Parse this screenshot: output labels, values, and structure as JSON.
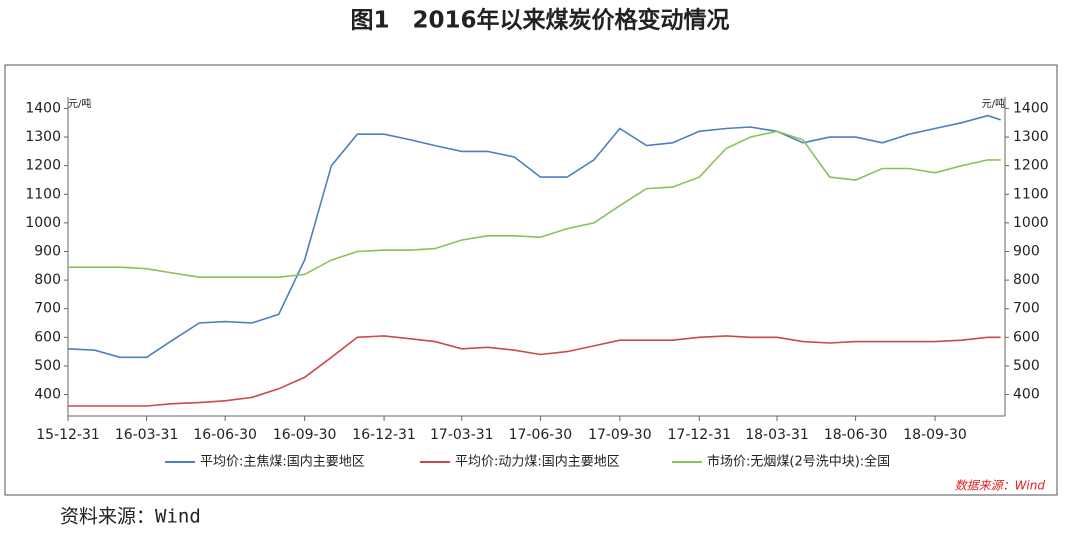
{
  "page_title": "图1　2016年以来煤炭价格变动情况",
  "chart_data": {
    "type": "line",
    "y_unit": "元/吨",
    "y2_unit": "元/吨",
    "note": "数据来源：Wind",
    "x": [
      "15-12-31",
      "16-01-31",
      "16-02-29",
      "16-03-31",
      "16-04-30",
      "16-05-31",
      "16-06-30",
      "16-07-31",
      "16-08-31",
      "16-09-30",
      "16-10-31",
      "16-11-30",
      "16-12-31",
      "17-01-31",
      "17-02-28",
      "17-03-31",
      "17-04-30",
      "17-05-31",
      "17-06-30",
      "17-07-31",
      "17-08-31",
      "17-09-30",
      "17-10-31",
      "17-11-30",
      "17-12-31",
      "18-01-31",
      "18-02-28",
      "18-03-31",
      "18-04-30",
      "18-05-31",
      "18-06-30",
      "18-07-31",
      "18-08-31",
      "18-09-30",
      "18-10-31",
      "18-11-30",
      "18-12-15"
    ],
    "xlim": [
      "15-12-31",
      "18-12-20"
    ],
    "xticks": [
      "15-12-31",
      "16-03-31",
      "16-06-30",
      "16-09-30",
      "16-12-31",
      "17-03-31",
      "17-06-30",
      "17-09-30",
      "17-12-31",
      "18-03-31",
      "18-06-30",
      "18-09-30"
    ],
    "ylim": [
      325,
      1440
    ],
    "yticks": [
      400,
      500,
      600,
      700,
      800,
      900,
      1000,
      1100,
      1200,
      1300,
      1400
    ],
    "y2lim": [
      325,
      1440
    ],
    "y2ticks": [
      400,
      500,
      600,
      700,
      800,
      900,
      1000,
      1100,
      1200,
      1300,
      1400
    ],
    "grid": false,
    "legend": "bottom",
    "series": [
      {
        "name": "平均价:主焦煤:国内主要地区",
        "color": "#4a7fc1",
        "values": [
          560,
          555,
          530,
          530,
          590,
          650,
          655,
          650,
          680,
          870,
          1200,
          1310,
          1310,
          1290,
          1270,
          1250,
          1250,
          1230,
          1160,
          1160,
          1220,
          1330,
          1270,
          1280,
          1320,
          1330,
          1335,
          1320,
          1280,
          1300,
          1300,
          1280,
          1310,
          1330,
          1350,
          1375,
          1360
        ]
      },
      {
        "name": "平均价:动力煤:国内主要地区",
        "color": "#c94a4a",
        "values": [
          360,
          360,
          360,
          360,
          368,
          372,
          378,
          390,
          420,
          460,
          530,
          600,
          605,
          595,
          585,
          560,
          565,
          555,
          540,
          550,
          570,
          590,
          590,
          590,
          600,
          605,
          600,
          600,
          585,
          580,
          585,
          585,
          585,
          585,
          590,
          600,
          600
        ]
      },
      {
        "name": "市场价:无烟煤(2号洗中块):全国",
        "color": "#8cc157",
        "values": [
          845,
          845,
          845,
          840,
          825,
          810,
          810,
          810,
          810,
          820,
          870,
          900,
          905,
          905,
          910,
          940,
          955,
          955,
          950,
          980,
          1000,
          1060,
          1120,
          1125,
          1160,
          1260,
          1300,
          1320,
          1290,
          1160,
          1150,
          1190,
          1190,
          1175,
          1200,
          1220,
          1220
        ]
      }
    ]
  },
  "footer": "资料来源：Wind"
}
